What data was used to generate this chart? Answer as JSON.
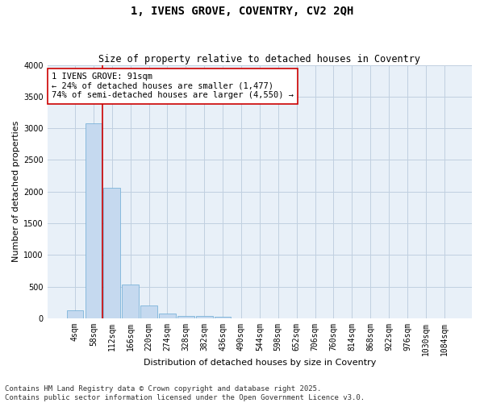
{
  "title": "1, IVENS GROVE, COVENTRY, CV2 2QH",
  "subtitle": "Size of property relative to detached houses in Coventry",
  "xlabel": "Distribution of detached houses by size in Coventry",
  "ylabel": "Number of detached properties",
  "footnote": "Contains HM Land Registry data © Crown copyright and database right 2025.\nContains public sector information licensed under the Open Government Licence v3.0.",
  "categories": [
    "4sqm",
    "58sqm",
    "112sqm",
    "166sqm",
    "220sqm",
    "274sqm",
    "328sqm",
    "382sqm",
    "436sqm",
    "490sqm",
    "544sqm",
    "598sqm",
    "652sqm",
    "706sqm",
    "760sqm",
    "814sqm",
    "868sqm",
    "922sqm",
    "976sqm",
    "1030sqm",
    "1084sqm"
  ],
  "values": [
    130,
    3080,
    2060,
    530,
    200,
    70,
    40,
    30,
    20,
    0,
    0,
    0,
    0,
    0,
    0,
    0,
    0,
    0,
    0,
    0,
    0
  ],
  "bar_color": "#c5d9ef",
  "bar_edge_color": "#6aaad4",
  "vline_x": 1.5,
  "vline_color": "#cc0000",
  "annotation_title": "1 IVENS GROVE: 91sqm",
  "annotation_line1": "← 24% of detached houses are smaller (1,477)",
  "annotation_line2": "74% of semi-detached houses are larger (4,550) →",
  "annotation_box_edge": "#cc0000",
  "ylim": [
    0,
    4000
  ],
  "yticks": [
    0,
    500,
    1000,
    1500,
    2000,
    2500,
    3000,
    3500,
    4000
  ],
  "background_color": "#ffffff",
  "plot_bg_color": "#e8f0f8",
  "grid_color": "#c0d0e0",
  "title_fontsize": 10,
  "subtitle_fontsize": 8.5,
  "axis_label_fontsize": 8,
  "tick_fontsize": 7,
  "annotation_fontsize": 7.5,
  "footnote_fontsize": 6.5
}
